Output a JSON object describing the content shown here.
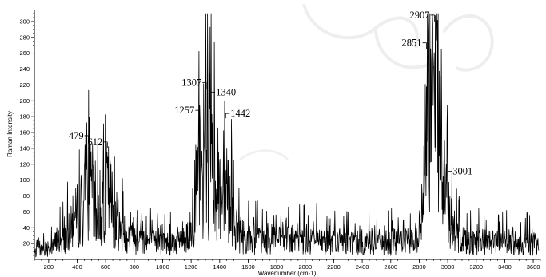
{
  "chart_data": {
    "type": "line",
    "title": "",
    "xlabel": "Wavenumber (cm-1)",
    "ylabel": "Raman Intensity",
    "xlim": [
      100,
      3650
    ],
    "ylim": [
      0,
      315
    ],
    "x_ticks": [
      200,
      400,
      600,
      800,
      1000,
      1200,
      1400,
      1600,
      1800,
      2000,
      2200,
      2400,
      2600,
      2800,
      3000,
      3200,
      3400,
      3600
    ],
    "y_ticks": [
      20,
      40,
      60,
      80,
      100,
      120,
      140,
      160,
      180,
      200,
      220,
      240,
      260,
      280,
      300
    ],
    "grid": false,
    "legend": "none",
    "line_color": "#000000",
    "series": [
      {
        "x": [
          100,
          150,
          200,
          250,
          300,
          350,
          400,
          450,
          479,
          520,
          560,
          612,
          650,
          700,
          800,
          900,
          1000,
          1100,
          1200,
          1257,
          1290,
          1307,
          1325,
          1340,
          1380,
          1420,
          1442,
          1480,
          1520,
          1600,
          1800,
          2000,
          2200,
          2400,
          2600,
          2750,
          2800,
          2830,
          2851,
          2870,
          2907,
          2930,
          2950,
          2980,
          3001,
          3030,
          3060,
          3100,
          3200,
          3400,
          3600
        ],
        "y": [
          12,
          18,
          25,
          32,
          38,
          55,
          85,
          110,
          148,
          90,
          75,
          140,
          100,
          55,
          42,
          35,
          30,
          35,
          55,
          180,
          110,
          215,
          150,
          205,
          150,
          120,
          178,
          100,
          55,
          38,
          36,
          36,
          35,
          33,
          33,
          34,
          40,
          120,
          265,
          275,
          300,
          270,
          220,
          135,
          105,
          65,
          45,
          38,
          34,
          32,
          30
        ]
      }
    ],
    "annotations": [
      {
        "text": "479",
        "x": 479,
        "y": 148
      },
      {
        "text": "612",
        "x": 612,
        "y": 140
      },
      {
        "text": "1257",
        "x": 1257,
        "y": 180
      },
      {
        "text": "1307",
        "x": 1307,
        "y": 215
      },
      {
        "text": "1340",
        "x": 1340,
        "y": 205
      },
      {
        "text": "1442",
        "x": 1442,
        "y": 178
      },
      {
        "text": "2851",
        "x": 2851,
        "y": 265
      },
      {
        "text": "2907",
        "x": 2907,
        "y": 300
      },
      {
        "text": "3001",
        "x": 3001,
        "y": 105
      }
    ]
  }
}
